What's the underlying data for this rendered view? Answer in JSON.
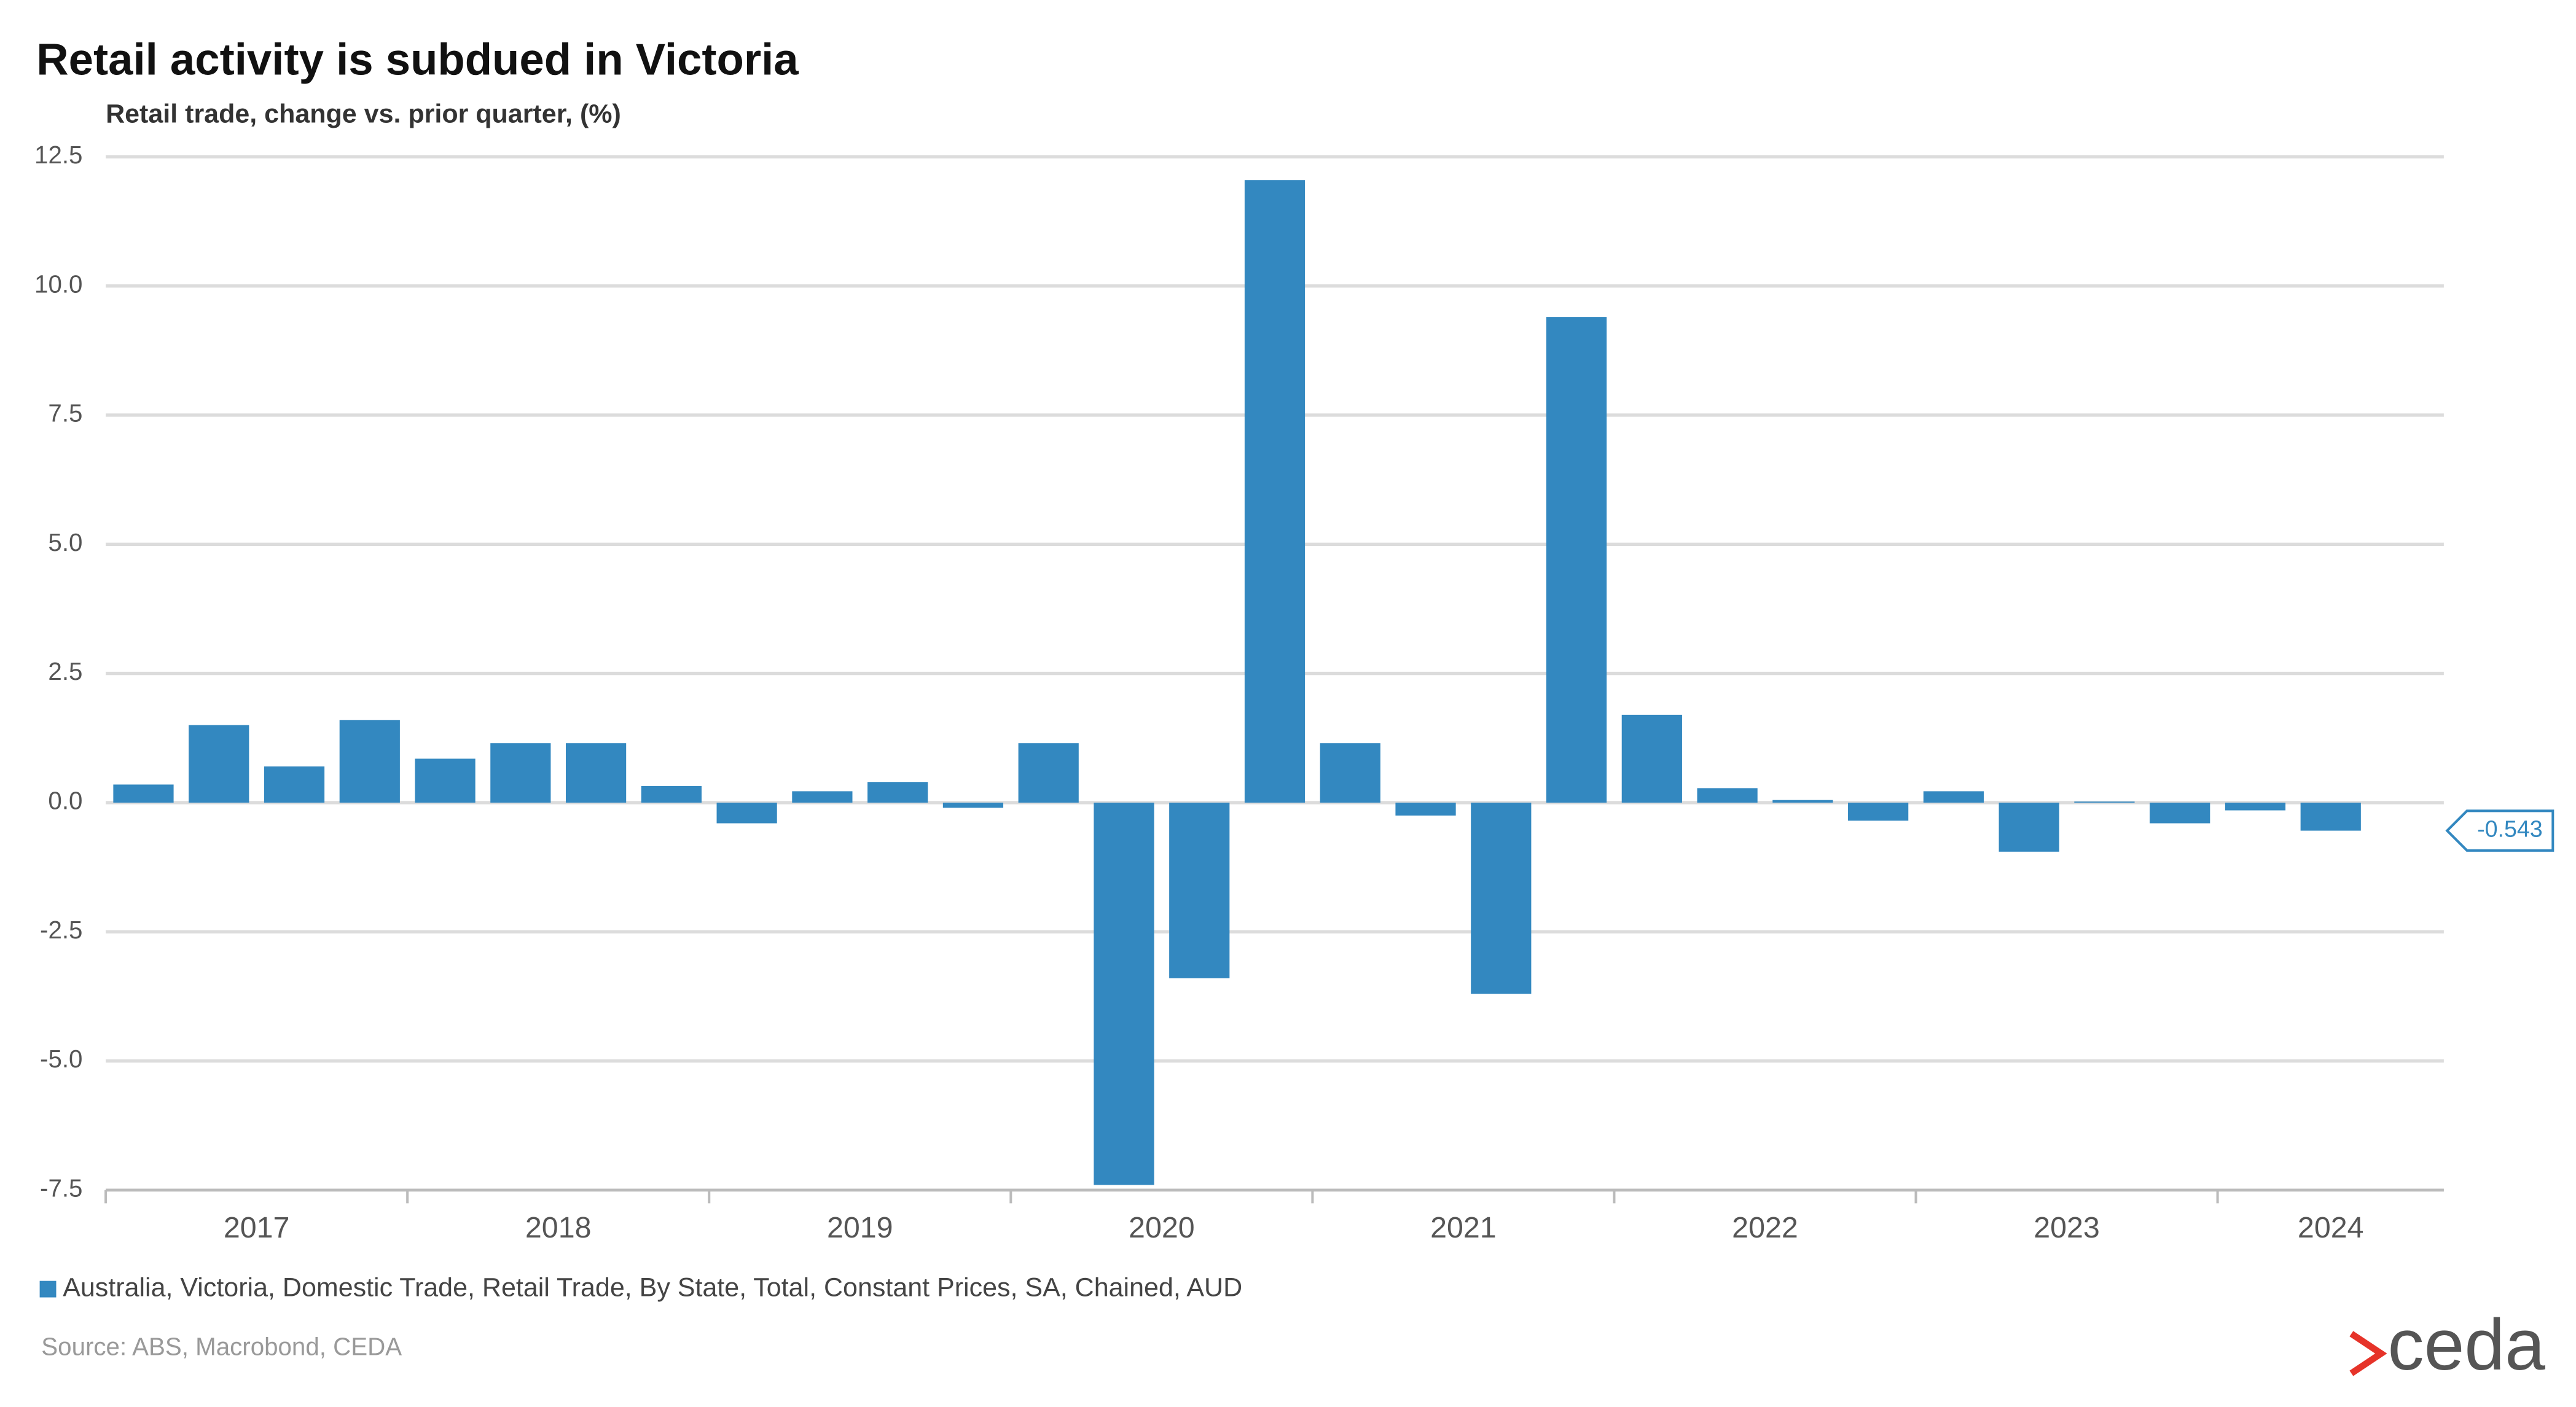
{
  "chart_data": {
    "type": "bar",
    "title": "Retail activity is subdued in Victoria",
    "subtitle": "Retail trade, change vs. prior quarter, (%)",
    "categories": [
      "2017",
      null,
      null,
      null,
      "2018",
      null,
      null,
      null,
      "2019",
      null,
      null,
      null,
      "2020",
      null,
      null,
      null,
      "2021",
      null,
      null,
      null,
      "2022",
      null,
      null,
      null,
      "2023",
      null,
      null,
      null,
      "2024",
      null
    ],
    "series": [
      {
        "name": "Australia, Victoria, Domestic Trade, Retail Trade, By State, Total, Constant Prices, SA, Chained, AUD",
        "color": "#3388c0",
        "values": [
          0.35,
          1.5,
          0.7,
          1.6,
          0.85,
          1.15,
          1.15,
          0.32,
          -0.4,
          0.22,
          0.4,
          -0.1,
          1.15,
          -7.4,
          -3.4,
          12.05,
          1.15,
          -0.25,
          -3.7,
          9.4,
          1.7,
          0.28,
          0.05,
          -0.35,
          0.22,
          -0.95,
          0.02,
          -0.4,
          -0.15,
          -0.543
        ]
      }
    ],
    "ylim": [
      -7.5,
      12.5
    ],
    "yticks": [
      -7.5,
      {
        "value": -5,
        "label": "-5.0"
      },
      -2.5,
      {
        "value": 0,
        "label": "0.0"
      },
      2.5,
      {
        "value": 5,
        "label": "5.0"
      },
      7.5,
      {
        "value": 10,
        "label": "10.0"
      },
      12.5
    ],
    "grid": true,
    "source": "Source: ABS, Macrobond, CEDA",
    "logo": "ceda"
  }
}
